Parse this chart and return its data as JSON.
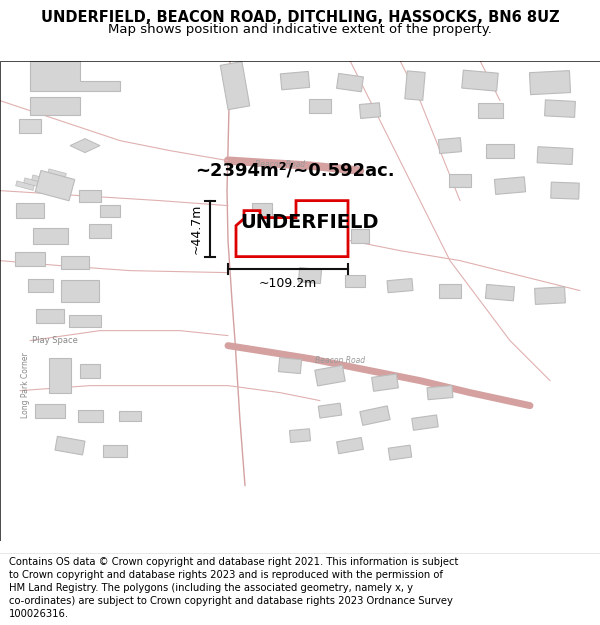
{
  "title_line1": "UNDERFIELD, BEACON ROAD, DITCHLING, HASSOCKS, BN6 8UZ",
  "title_line2": "Map shows position and indicative extent of the property.",
  "label_name": "UNDERFIELD",
  "label_area": "~2394m²/~0.592ac.",
  "label_width": "~109.2m",
  "label_height": "~44.7m",
  "footer_lines": [
    "Contains OS data © Crown copyright and database right 2021. This information is subject",
    "to Crown copyright and database rights 2023 and is reproduced with the permission of",
    "HM Land Registry. The polygons (including the associated geometry, namely x, y",
    "co-ordinates) are subject to Crown copyright and database rights 2023 Ordnance Survey",
    "100026316."
  ],
  "bg_color": "#ffffff",
  "map_bg": "#ffffff",
  "road_color": "#e8b4b4",
  "building_fill": "#d8d8d8",
  "building_edge": "#c8a0a0",
  "property_fill": "#ffffff",
  "property_outline": "#dd0000",
  "dim_color": "#111111",
  "title_fontsize": 10.5,
  "subtitle_fontsize": 9.5,
  "footer_fontsize": 7.2,
  "label_fontsize": 14,
  "area_fontsize": 13,
  "dim_fontsize": 9
}
